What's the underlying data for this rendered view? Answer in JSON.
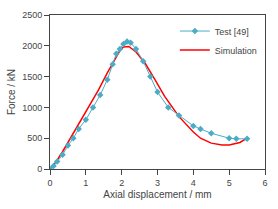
{
  "chart_data": {
    "type": "line",
    "xlabel": "Axial displacement / mm",
    "ylabel": "Force / kN",
    "xlim": [
      0,
      6
    ],
    "ylim": [
      0,
      2500
    ],
    "xticks": [
      0,
      1,
      2,
      3,
      4,
      5,
      6
    ],
    "yticks": [
      0,
      500,
      1000,
      1500,
      2000,
      2500
    ],
    "grid": false,
    "legend": "upper right",
    "series": [
      {
        "name": "Test [49]",
        "color": "#4bacc6",
        "marker": "diamond",
        "x": [
          0.0,
          0.1,
          0.2,
          0.35,
          0.5,
          0.65,
          0.8,
          1.0,
          1.2,
          1.4,
          1.6,
          1.75,
          1.85,
          1.95,
          2.05,
          2.15,
          2.25,
          2.4,
          2.6,
          2.8,
          3.0,
          3.3,
          3.6,
          4.0,
          4.2,
          4.5,
          5.0,
          5.2,
          5.5
        ],
        "values": [
          0,
          50,
          120,
          230,
          380,
          500,
          650,
          800,
          1000,
          1200,
          1450,
          1700,
          1870,
          1950,
          2030,
          2070,
          2050,
          1950,
          1750,
          1500,
          1250,
          1000,
          870,
          700,
          650,
          580,
          500,
          490,
          490
        ]
      },
      {
        "name": "Simulation",
        "color": "#ff0000",
        "x": [
          0.0,
          0.15,
          0.35,
          0.6,
          0.85,
          1.1,
          1.35,
          1.6,
          1.8,
          1.95,
          2.05,
          2.2,
          2.4,
          2.65,
          2.9,
          3.2,
          3.6,
          4.0,
          4.2,
          4.5,
          4.8,
          5.0,
          5.3,
          5.5
        ],
        "values": [
          0,
          100,
          280,
          530,
          780,
          1020,
          1280,
          1560,
          1780,
          1920,
          1980,
          1990,
          1900,
          1720,
          1480,
          1180,
          850,
          600,
          500,
          420,
          390,
          390,
          430,
          500
        ]
      }
    ]
  }
}
